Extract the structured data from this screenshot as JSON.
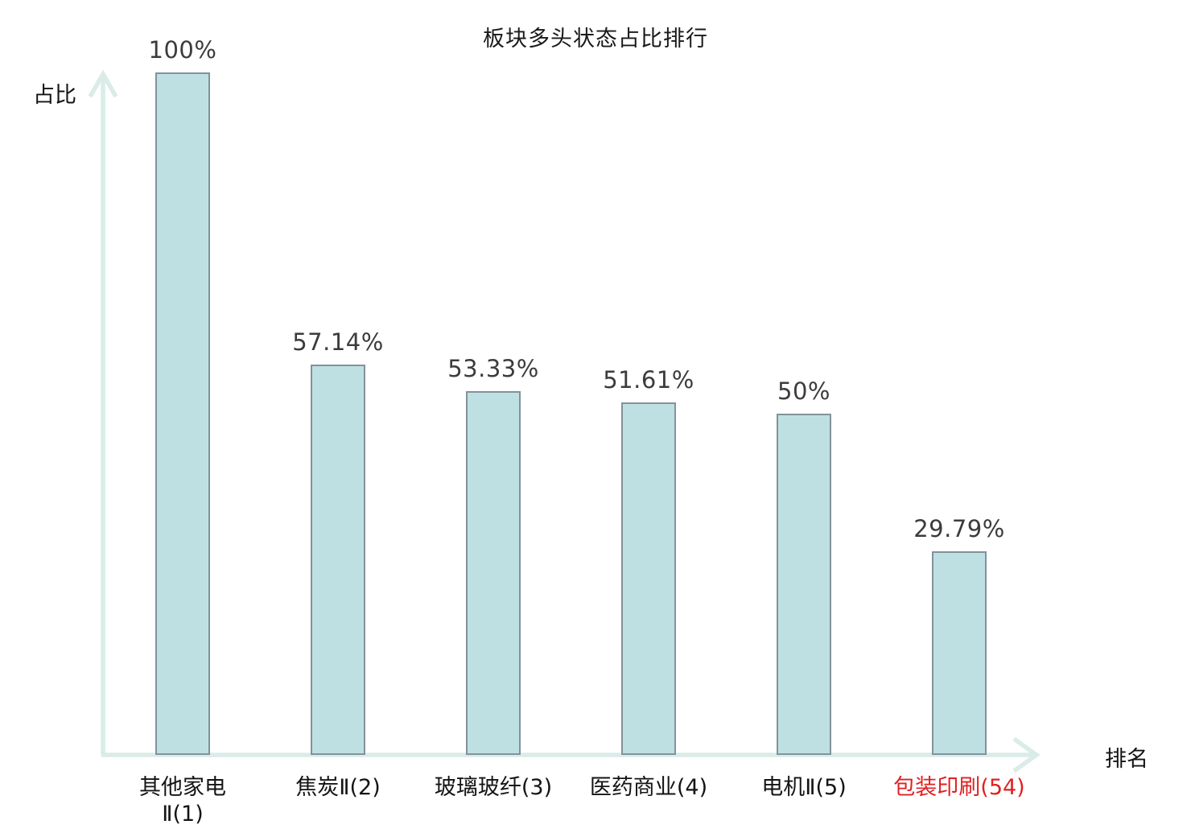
{
  "chart_data": {
    "type": "bar",
    "title": "板块多头状态占比排行",
    "xlabel": "排名",
    "ylabel": "占比",
    "categories": [
      "其他家电\nⅡ(1)",
      "焦炭Ⅱ(2)",
      "玻璃玻纤(3)",
      "医药商业(4)",
      "电机Ⅱ(5)",
      "包装印刷(54)"
    ],
    "values": [
      100,
      57.14,
      53.33,
      51.61,
      50,
      29.79
    ],
    "value_labels": [
      "100%",
      "57.14%",
      "53.33%",
      "51.61%",
      "50%",
      "29.79%"
    ],
    "highlight_index": 5,
    "ylim": [
      0,
      100
    ],
    "grid": false,
    "legend_position": "none",
    "colors": {
      "bar_fill": "#bfe0e3",
      "bar_border": "#82929a",
      "axis": "#d9ece8",
      "value_label": "#3c3c3c",
      "category_label": "#141414",
      "highlight_label": "#e02121",
      "title": "#1a1a1a"
    }
  }
}
